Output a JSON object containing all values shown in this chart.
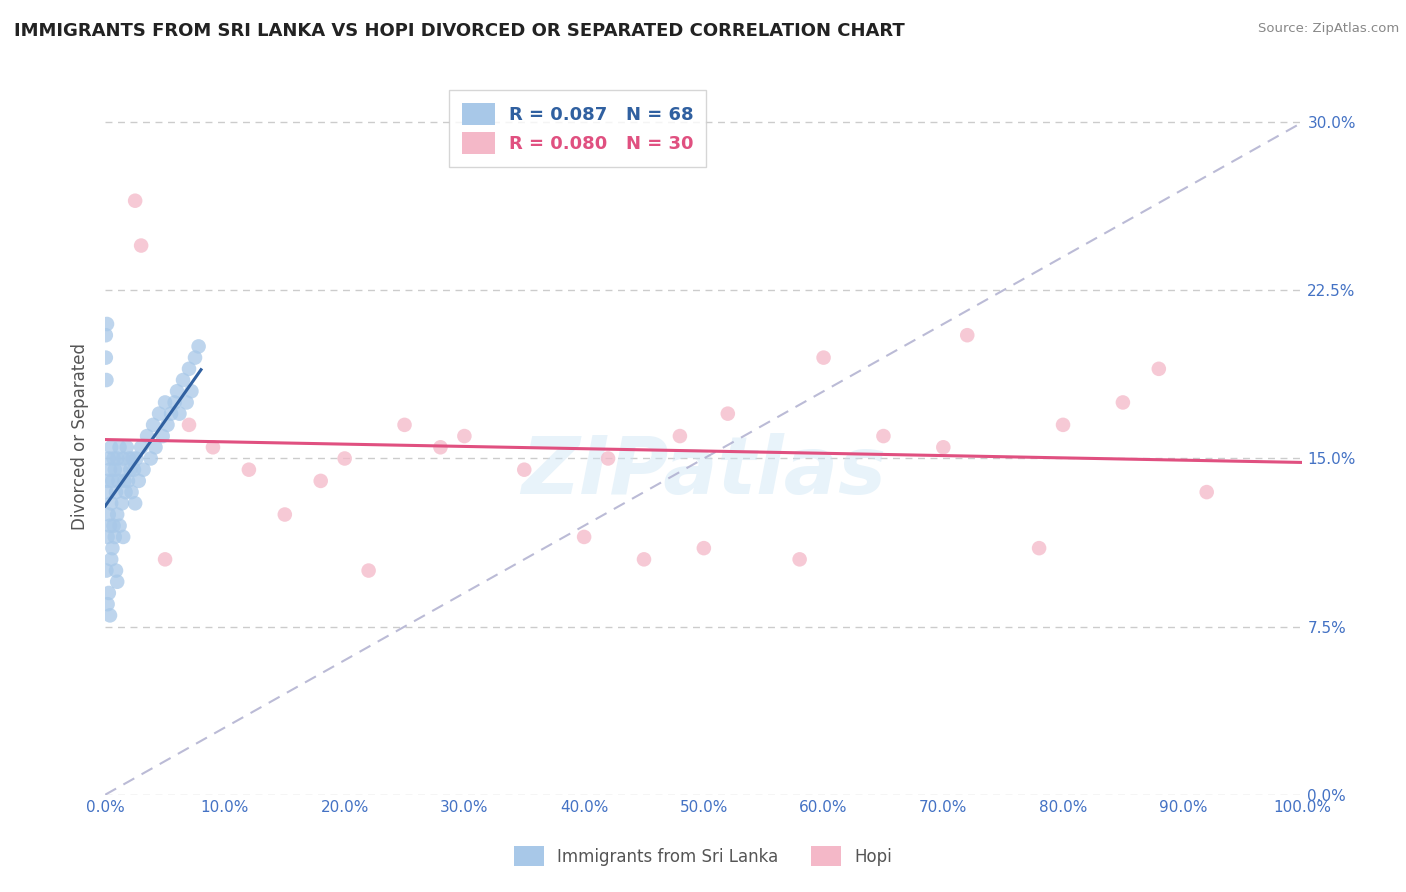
{
  "title": "IMMIGRANTS FROM SRI LANKA VS HOPI DIVORCED OR SEPARATED CORRELATION CHART",
  "source_text": "Source: ZipAtlas.com",
  "ylabel": "Divorced or Separated",
  "legend_label_1": "Immigrants from Sri Lanka",
  "legend_label_2": "Hopi",
  "R1": 0.087,
  "N1": 68,
  "R2": 0.08,
  "N2": 30,
  "color_blue": "#a8c8e8",
  "color_pink": "#f4b8c8",
  "color_blue_line": "#3060a0",
  "color_pink_line": "#e05080",
  "color_dashed": "#aaaacc",
  "watermark_text": "ZIPatlas",
  "blue_points_x": [
    0.1,
    0.1,
    0.2,
    0.2,
    0.2,
    0.3,
    0.3,
    0.3,
    0.4,
    0.4,
    0.4,
    0.5,
    0.5,
    0.5,
    0.6,
    0.6,
    0.7,
    0.7,
    0.8,
    0.8,
    0.9,
    0.9,
    1.0,
    1.0,
    1.0,
    1.1,
    1.2,
    1.2,
    1.3,
    1.4,
    1.5,
    1.5,
    1.6,
    1.7,
    1.8,
    1.9,
    2.0,
    2.1,
    2.2,
    2.3,
    2.4,
    2.5,
    2.6,
    2.8,
    3.0,
    3.2,
    3.5,
    3.8,
    4.0,
    4.2,
    4.5,
    4.8,
    5.0,
    5.2,
    5.5,
    5.8,
    6.0,
    6.2,
    6.5,
    6.8,
    7.0,
    7.2,
    7.5,
    7.8,
    0.05,
    0.05,
    0.1,
    0.15
  ],
  "blue_points_y": [
    13.5,
    10.0,
    14.0,
    11.5,
    8.5,
    15.0,
    12.5,
    9.0,
    14.5,
    12.0,
    8.0,
    15.5,
    13.0,
    10.5,
    14.0,
    11.0,
    15.0,
    12.0,
    14.5,
    11.5,
    13.5,
    10.0,
    15.0,
    12.5,
    9.5,
    14.0,
    15.5,
    12.0,
    14.5,
    13.0,
    15.0,
    11.5,
    14.0,
    13.5,
    15.5,
    14.0,
    15.0,
    14.5,
    13.5,
    15.0,
    14.5,
    13.0,
    15.0,
    14.0,
    15.5,
    14.5,
    16.0,
    15.0,
    16.5,
    15.5,
    17.0,
    16.0,
    17.5,
    16.5,
    17.0,
    17.5,
    18.0,
    17.0,
    18.5,
    17.5,
    19.0,
    18.0,
    19.5,
    20.0,
    19.5,
    20.5,
    18.5,
    21.0
  ],
  "pink_points_x": [
    2.5,
    3.0,
    5.0,
    7.0,
    9.0,
    12.0,
    15.0,
    18.0,
    20.0,
    22.0,
    25.0,
    28.0,
    30.0,
    35.0,
    40.0,
    42.0,
    45.0,
    48.0,
    50.0,
    52.0,
    58.0,
    60.0,
    65.0,
    70.0,
    72.0,
    78.0,
    80.0,
    85.0,
    88.0,
    92.0
  ],
  "pink_points_y": [
    26.5,
    24.5,
    10.5,
    16.5,
    15.5,
    14.5,
    12.5,
    14.0,
    15.0,
    10.0,
    16.5,
    15.5,
    16.0,
    14.5,
    11.5,
    15.0,
    10.5,
    16.0,
    11.0,
    17.0,
    10.5,
    19.5,
    16.0,
    15.5,
    20.5,
    11.0,
    16.5,
    17.5,
    19.0,
    13.5
  ],
  "xlim": [
    0,
    100
  ],
  "ylim": [
    0,
    32
  ],
  "yticks": [
    0,
    7.5,
    15.0,
    22.5,
    30.0
  ],
  "xticks": [
    0,
    10,
    20,
    30,
    40,
    50,
    60,
    70,
    80,
    90,
    100
  ],
  "background_color": "#ffffff",
  "grid_color": "#cccccc",
  "tick_color": "#4472c4",
  "title_color": "#222222",
  "source_color": "#888888",
  "ylabel_color": "#555555"
}
